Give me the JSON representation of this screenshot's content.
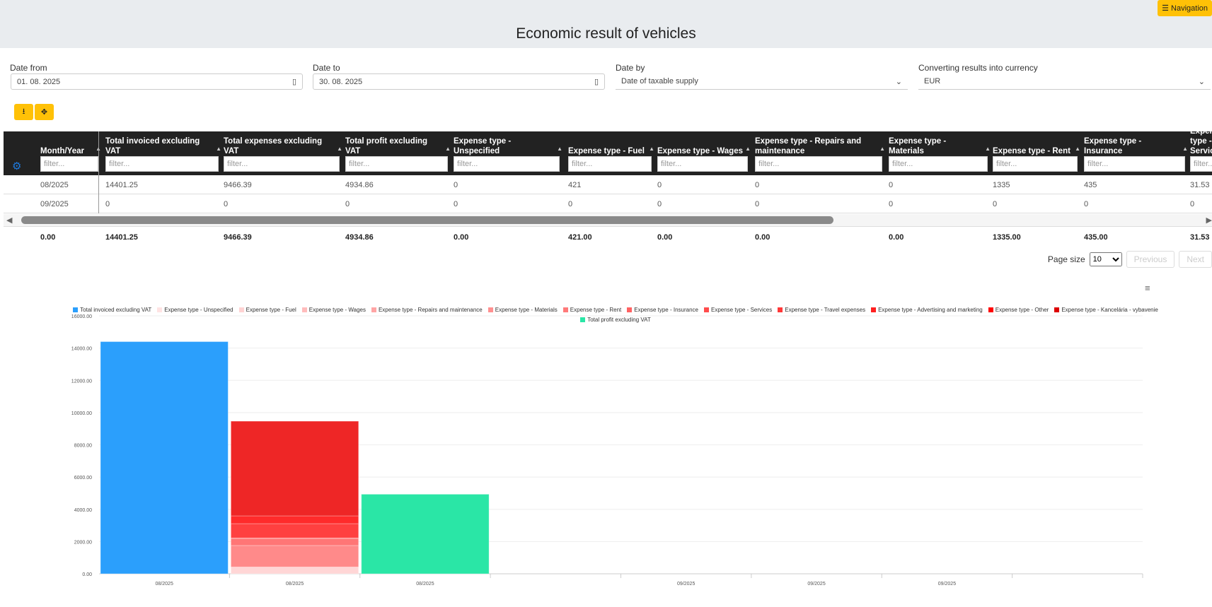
{
  "header": {
    "title": "Economic result of vehicles",
    "nav_label": "Navigation"
  },
  "filters": {
    "date_from": {
      "label": "Date from",
      "value": "01. 08. 2025"
    },
    "date_to": {
      "label": "Date to",
      "value": "30. 08. 2025"
    },
    "date_by": {
      "label": "Date by",
      "value": "Date of taxable supply"
    },
    "currency": {
      "label": "Converting results into currency",
      "value": "EUR"
    }
  },
  "toolbar": {
    "export_icon": "download-icon",
    "move_icon": "move-arrows-icon"
  },
  "table": {
    "columns": [
      "Month/Year",
      "Total invoiced excluding VAT",
      "Total expenses excluding VAT",
      "Total profit excluding VAT",
      "Expense type - Unspecified",
      "Expense type - Fuel",
      "Expense type - Wages",
      "Expense type - Repairs and maintenance",
      "Expense type - Materials",
      "Expense type - Rent",
      "Expense type - Insurance",
      "Expense type - Services"
    ],
    "filter_placeholder": "filter...",
    "rows": [
      [
        "08/2025",
        "14401.25",
        "9466.39",
        "4934.86",
        "0",
        "421",
        "0",
        "0",
        "0",
        "1335",
        "435",
        "31.53"
      ],
      [
        "09/2025",
        "0",
        "0",
        "0",
        "0",
        "0",
        "0",
        "0",
        "0",
        "0",
        "0",
        "0"
      ]
    ],
    "totals": [
      "0.00",
      "14401.25",
      "9466.39",
      "4934.86",
      "0.00",
      "421.00",
      "0.00",
      "0.00",
      "0.00",
      "1335.00",
      "435.00",
      "31.53"
    ]
  },
  "pagination": {
    "page_size_label": "Page size",
    "page_size": "10",
    "previous": "Previous",
    "next": "Next"
  },
  "chart_data": {
    "type": "bar",
    "stacked": true,
    "categories": [
      "08/2025",
      "08/2025",
      "08/2025",
      "",
      "09/2025",
      "09/2025",
      "09/2025",
      ""
    ],
    "ylim": [
      0,
      16000
    ],
    "yticks": [
      "0.00",
      "2000.00",
      "4000.00",
      "6000.00",
      "8000.00",
      "10000.00",
      "12000.00",
      "14000.00",
      "16000.00"
    ],
    "grid": true,
    "legend_position": "top",
    "legend": [
      {
        "name": "Total invoiced excluding VAT",
        "color": "#2b9ffc"
      },
      {
        "name": "Expense type - Unspecified",
        "color": "#ffe3e3"
      },
      {
        "name": "Expense type - Fuel",
        "color": "#ffd3d3"
      },
      {
        "name": "Expense type - Wages",
        "color": "#ffbcbc"
      },
      {
        "name": "Expense type - Repairs and maintenance",
        "color": "#ffa5a5"
      },
      {
        "name": "Expense type - Materials",
        "color": "#ff9090"
      },
      {
        "name": "Expense type - Rent",
        "color": "#ff7a7a"
      },
      {
        "name": "Expense type - Insurance",
        "color": "#ff6262"
      },
      {
        "name": "Expense type - Services",
        "color": "#ff4c4c"
      },
      {
        "name": "Expense type - Travel expenses",
        "color": "#ff3838"
      },
      {
        "name": "Expense type - Advertising and marketing",
        "color": "#ff2020"
      },
      {
        "name": "Expense type - Other",
        "color": "#ff0000"
      },
      {
        "name": "Expense type - Kancelária - vybavenie",
        "color": "#dd0000"
      },
      {
        "name": "Total profit excluding VAT",
        "color": "#2ae6a6"
      }
    ],
    "bars": [
      {
        "slot": 0,
        "segments": [
          {
            "series": "Total invoiced excluding VAT",
            "value": 14401.25,
            "color": "#2b9ffc"
          }
        ]
      },
      {
        "slot": 1,
        "segments": [
          {
            "series": "Expense type - Fuel",
            "value": 421,
            "color": "#ffd6d6"
          },
          {
            "series": "Expense type - Rent",
            "value": 1335,
            "color": "#ff8a8a"
          },
          {
            "series": "Expense type - Insurance",
            "value": 435,
            "color": "#ff7676"
          },
          {
            "series": "Expense type - Services",
            "value": 31.53,
            "color": "#ff6a6a"
          },
          {
            "series": "Expense type - Travel expenses",
            "value": 889,
            "color": "#ff4040"
          },
          {
            "series": "Expense type - Advertising and marketing",
            "value": 483,
            "color": "#ff2b2b"
          },
          {
            "series": "Expense type - Other",
            "value": 5871.86,
            "color": "#ee2626"
          }
        ]
      },
      {
        "slot": 2,
        "segments": [
          {
            "series": "Total profit excluding VAT",
            "value": 4934.86,
            "color": "#2ae6a6"
          }
        ]
      }
    ]
  }
}
